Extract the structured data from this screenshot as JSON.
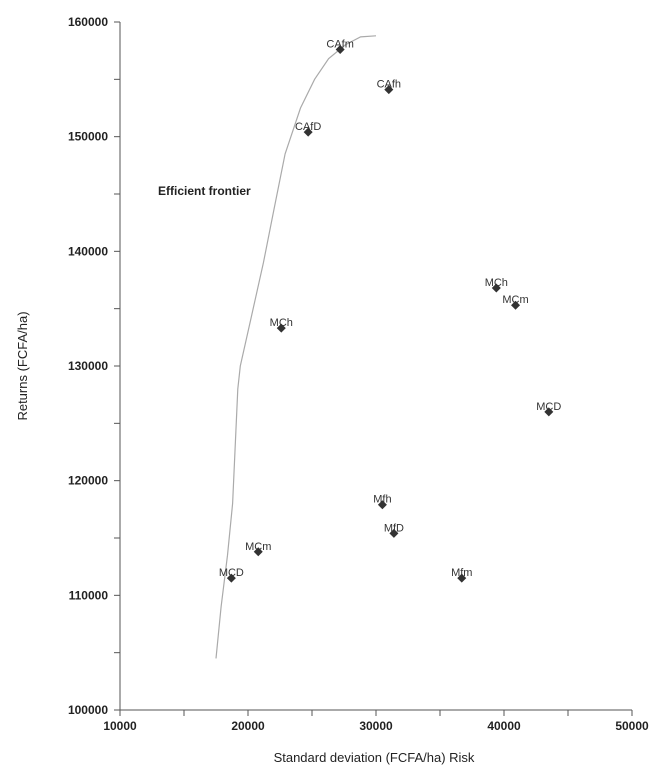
{
  "chart_data": {
    "type": "scatter",
    "xlabel": "Standard deviation (FCFA/ha) Risk",
    "ylabel": "Returns (FCFA/ha)",
    "xlim": [
      10000,
      50000
    ],
    "ylim": [
      100000,
      160000
    ],
    "x_ticks": [
      10000,
      20000,
      30000,
      40000,
      50000
    ],
    "y_ticks": [
      100000,
      110000,
      120000,
      130000,
      140000,
      150000,
      160000
    ],
    "x_tick_labels": [
      "10000",
      "20000",
      "30000",
      "40000",
      "50000"
    ],
    "y_tick_labels": [
      "100000",
      "110000",
      "120000",
      "130000",
      "140000",
      "150000",
      "160000"
    ],
    "grid": false,
    "points": [
      {
        "label": "CAfm",
        "x": 27200,
        "y": 157600
      },
      {
        "label": "CAfh",
        "x": 31000,
        "y": 154100
      },
      {
        "label": "CAfD",
        "x": 24700,
        "y": 150400
      },
      {
        "label": "MCh",
        "x": 39400,
        "y": 136800
      },
      {
        "label": "MCm",
        "x": 40900,
        "y": 135300
      },
      {
        "label": "MCh",
        "x": 22600,
        "y": 133300
      },
      {
        "label": "MCD",
        "x": 43500,
        "y": 126000
      },
      {
        "label": "Mfh",
        "x": 30500,
        "y": 117900
      },
      {
        "label": "MfD",
        "x": 31400,
        "y": 115400
      },
      {
        "label": "MCm",
        "x": 20800,
        "y": 113800
      },
      {
        "label": "MCD",
        "x": 18700,
        "y": 111500
      },
      {
        "label": "Mfm",
        "x": 36700,
        "y": 111500
      }
    ],
    "frontier": {
      "label": "Efficient frontier",
      "x": [
        17500,
        17900,
        18400,
        18800,
        19000,
        19200,
        19400,
        20200,
        21200,
        22000,
        22900,
        24100,
        25200,
        26300,
        27600,
        28800,
        30000
      ],
      "y": [
        104500,
        109000,
        113500,
        118000,
        123000,
        128000,
        130000,
        134000,
        139000,
        143500,
        148500,
        152500,
        155000,
        156800,
        158000,
        158700,
        158800
      ]
    }
  }
}
